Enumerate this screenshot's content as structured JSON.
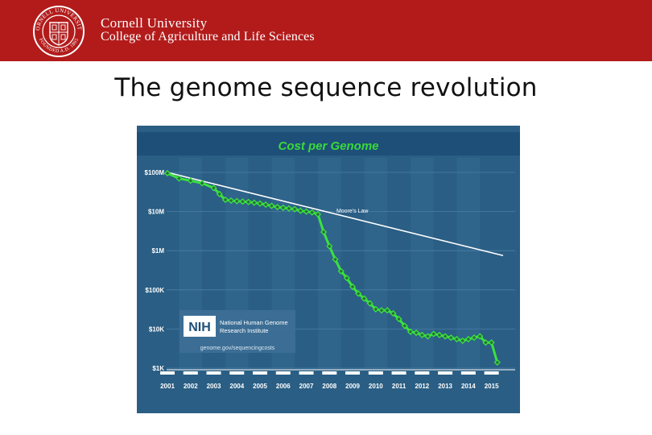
{
  "header": {
    "university": "Cornell University",
    "college": "College of Agriculture and Life Sciences",
    "seal_text_top": "CORNELL UNIVERSITY",
    "seal_text_bottom": "FOUNDED A.D. 1865",
    "brand_color": "#b31b1b"
  },
  "slide": {
    "title": "The genome sequence revolution"
  },
  "chart_data": {
    "type": "line",
    "title": "Cost per Genome",
    "xlabel": "",
    "ylabel": "",
    "y_scale": "log",
    "ylim": [
      1000,
      100000000
    ],
    "yticks": [
      {
        "value": 100000000,
        "label": "$100M"
      },
      {
        "value": 10000000,
        "label": "$10M"
      },
      {
        "value": 1000000,
        "label": "$1M"
      },
      {
        "value": 100000,
        "label": "$100K"
      },
      {
        "value": 10000,
        "label": "$10K"
      },
      {
        "value": 1000,
        "label": "$1K"
      }
    ],
    "xlim": [
      2001.0,
      2015.5
    ],
    "xticks": [
      "2001",
      "2002",
      "2003",
      "2004",
      "2005",
      "2006",
      "2007",
      "2008",
      "2009",
      "2010",
      "2011",
      "2012",
      "2013",
      "2014",
      "2015"
    ],
    "grid": true,
    "colors": {
      "background": "#2a5e84",
      "title_bar": "#1e4f78",
      "title": "#39d93c",
      "cost_line": "#3be13f",
      "moores_line": "#ffffff",
      "ticks": "#ffffff"
    },
    "series": [
      {
        "name": "",
        "points": [
          {
            "x": 2001.0,
            "y": 95300000
          },
          {
            "x": 2001.5,
            "y": 70200000
          },
          {
            "x": 2002.0,
            "y": 61400000
          },
          {
            "x": 2002.5,
            "y": 53100000
          },
          {
            "x": 2003.0,
            "y": 40000000
          },
          {
            "x": 2003.25,
            "y": 28000000
          },
          {
            "x": 2003.5,
            "y": 20000000
          },
          {
            "x": 2003.75,
            "y": 19000000
          },
          {
            "x": 2004.0,
            "y": 18500000
          },
          {
            "x": 2004.25,
            "y": 18000000
          },
          {
            "x": 2004.5,
            "y": 17500000
          },
          {
            "x": 2004.75,
            "y": 16800000
          },
          {
            "x": 2005.0,
            "y": 16000000
          },
          {
            "x": 2005.25,
            "y": 15000000
          },
          {
            "x": 2005.5,
            "y": 14000000
          },
          {
            "x": 2005.75,
            "y": 13000000
          },
          {
            "x": 2006.0,
            "y": 12500000
          },
          {
            "x": 2006.25,
            "y": 12000000
          },
          {
            "x": 2006.5,
            "y": 11500000
          },
          {
            "x": 2006.75,
            "y": 10500000
          },
          {
            "x": 2007.0,
            "y": 10000000
          },
          {
            "x": 2007.25,
            "y": 9500000
          },
          {
            "x": 2007.5,
            "y": 8500000
          },
          {
            "x": 2007.75,
            "y": 3000000
          },
          {
            "x": 2008.0,
            "y": 1300000
          },
          {
            "x": 2008.25,
            "y": 600000
          },
          {
            "x": 2008.5,
            "y": 300000
          },
          {
            "x": 2008.75,
            "y": 200000
          },
          {
            "x": 2009.0,
            "y": 120000
          },
          {
            "x": 2009.25,
            "y": 80000
          },
          {
            "x": 2009.5,
            "y": 60000
          },
          {
            "x": 2009.75,
            "y": 45000
          },
          {
            "x": 2010.0,
            "y": 32000
          },
          {
            "x": 2010.25,
            "y": 30000
          },
          {
            "x": 2010.5,
            "y": 30000
          },
          {
            "x": 2010.75,
            "y": 25000
          },
          {
            "x": 2011.0,
            "y": 18000
          },
          {
            "x": 2011.25,
            "y": 12000
          },
          {
            "x": 2011.5,
            "y": 8500
          },
          {
            "x": 2011.75,
            "y": 8000
          },
          {
            "x": 2012.0,
            "y": 7000
          },
          {
            "x": 2012.25,
            "y": 6500
          },
          {
            "x": 2012.5,
            "y": 7500
          },
          {
            "x": 2012.75,
            "y": 7000
          },
          {
            "x": 2013.0,
            "y": 6500
          },
          {
            "x": 2013.25,
            "y": 6000
          },
          {
            "x": 2013.5,
            "y": 5500
          },
          {
            "x": 2013.75,
            "y": 5000
          },
          {
            "x": 2014.0,
            "y": 5500
          },
          {
            "x": 2014.25,
            "y": 6000
          },
          {
            "x": 2014.5,
            "y": 6500
          },
          {
            "x": 2014.75,
            "y": 4500
          },
          {
            "x": 2015.0,
            "y": 4500
          },
          {
            "x": 2015.25,
            "y": 1400
          }
        ]
      }
    ],
    "annotations": [
      {
        "text": "Moore's Law",
        "type": "trend-line",
        "from": {
          "x": 2001.0,
          "y": 100000000
        },
        "to": {
          "x": 2015.5,
          "y": 750000
        }
      }
    ],
    "logo": {
      "mark": "NIH",
      "name_line1": "National Human Genome",
      "name_line2": "Research Institute",
      "url": "genome.gov/sequencingcosts"
    }
  }
}
